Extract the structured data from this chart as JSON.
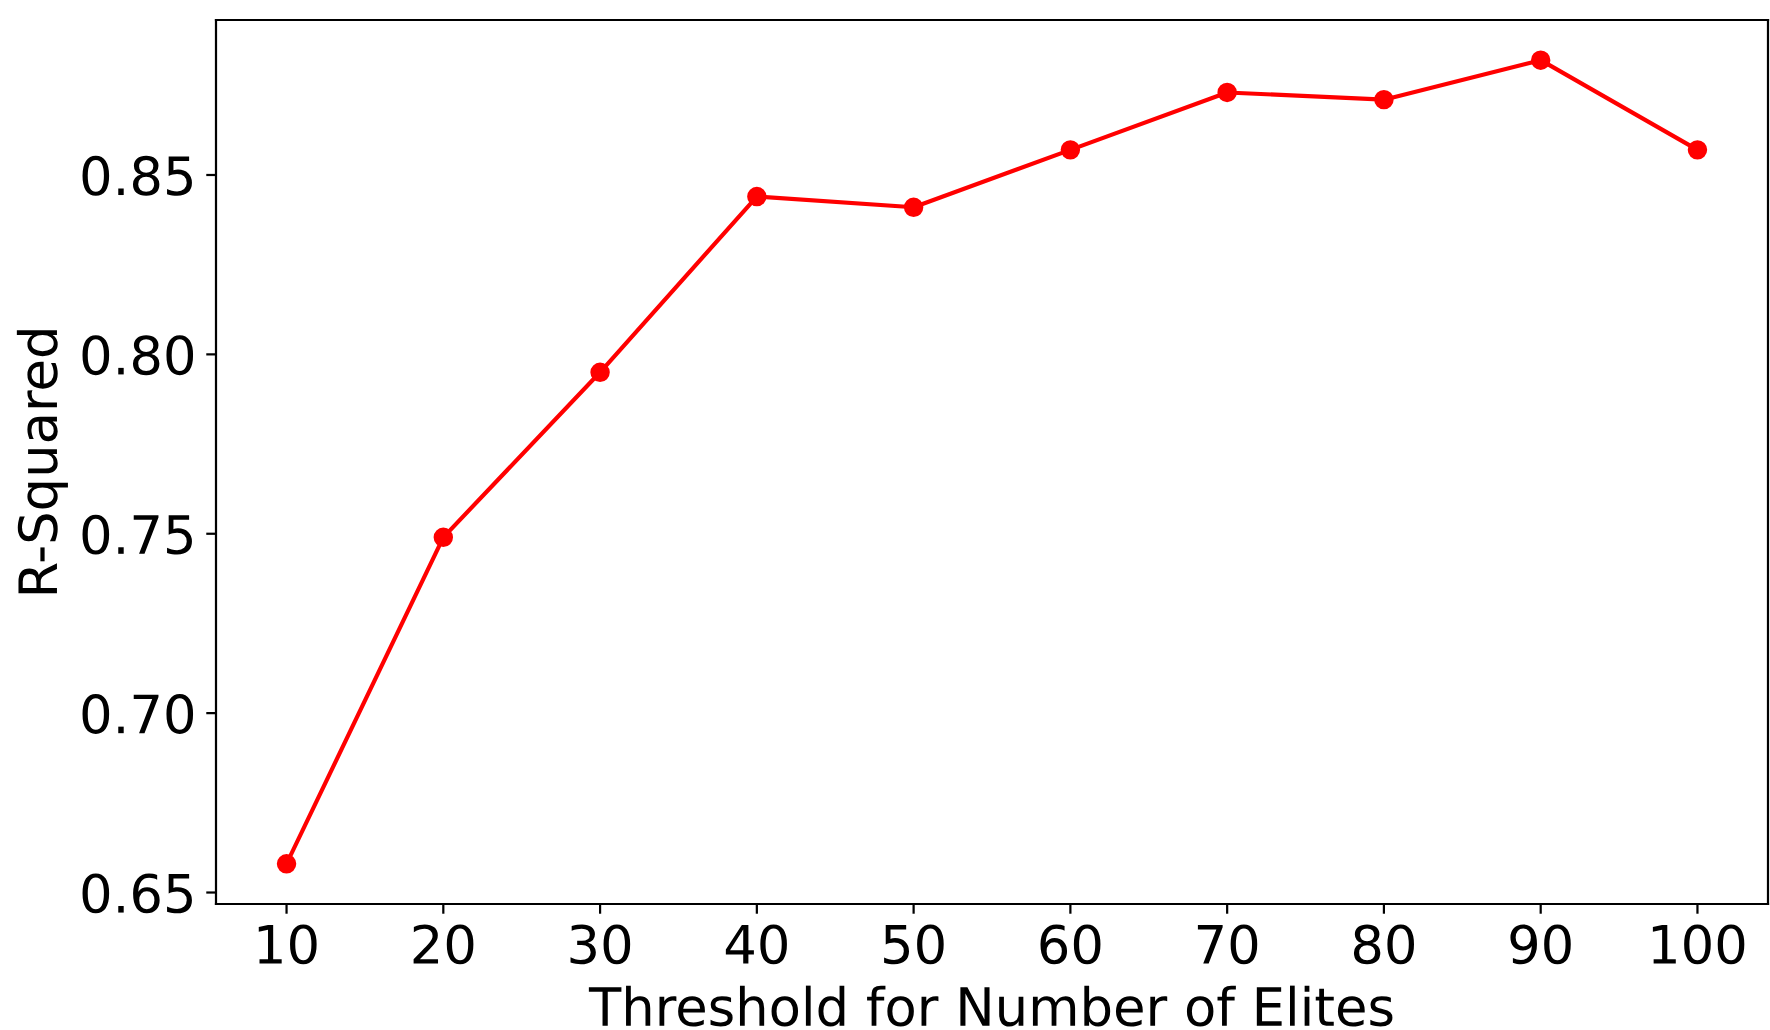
{
  "chart_data": {
    "type": "line",
    "xlabel": "Threshold for Number of Elites",
    "ylabel": "R-Squared",
    "x": [
      10,
      20,
      30,
      40,
      50,
      60,
      70,
      80,
      90,
      100
    ],
    "series": [
      {
        "color": "#ff0000",
        "values": [
          0.658,
          0.749,
          0.795,
          0.844,
          0.841,
          0.857,
          0.873,
          0.871,
          0.882,
          0.857
        ]
      }
    ],
    "xlim": [
      5.5,
      104.5
    ],
    "ylim": [
      0.6468,
      0.8932
    ],
    "xticks": [
      10,
      20,
      30,
      40,
      50,
      60,
      70,
      80,
      90,
      100
    ],
    "yticks": [
      {
        "value": 0.65,
        "label": "0.65"
      },
      {
        "value": 0.7,
        "label": "0.70"
      },
      {
        "value": 0.75,
        "label": "0.75"
      },
      {
        "value": 0.8,
        "label": "0.80"
      },
      {
        "value": 0.85,
        "label": "0.85"
      }
    ],
    "marker": "circle",
    "line_style": "solid",
    "grid": false,
    "legend": false
  }
}
